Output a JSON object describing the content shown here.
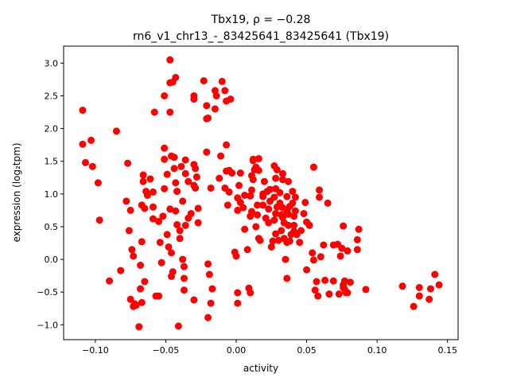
{
  "chart_data": {
    "type": "scatter",
    "title_line1": "Tbx19, ρ = −0.28",
    "title_line2": "rn6_v1_chr13_-_83425641_83425641 (Tbx19)",
    "xlabel": "activity",
    "ylabel": "expression (log₂tpm)",
    "xlim": [
      -0.1225,
      0.1575
    ],
    "ylim": [
      -1.227,
      3.26
    ],
    "xticks": [
      -0.1,
      -0.05,
      0.0,
      0.05,
      0.1,
      0.15
    ],
    "xtick_labels": [
      "−0.10",
      "−0.05",
      "0.00",
      "0.05",
      "0.10",
      "0.15"
    ],
    "yticks": [
      -1.0,
      -0.5,
      0.0,
      0.5,
      1.0,
      1.5,
      2.0,
      2.5,
      3.0
    ],
    "ytick_labels": [
      "−1.0",
      "−0.5",
      "0.0",
      "0.5",
      "1.0",
      "1.5",
      "2.0",
      "2.5",
      "3.0"
    ],
    "grid": false,
    "marker_color": "#ff0000",
    "x": [
      -0.109,
      -0.109,
      -0.107,
      -0.103,
      -0.102,
      -0.098,
      -0.097,
      -0.09,
      -0.085,
      -0.082,
      -0.078,
      -0.077,
      -0.076,
      -0.075,
      -0.074,
      -0.073,
      -0.075,
      -0.073,
      -0.072,
      -0.071,
      -0.069,
      -0.067,
      -0.068,
      -0.068,
      -0.067,
      -0.067,
      -0.066,
      -0.066,
      -0.065,
      -0.065,
      -0.063,
      -0.064,
      -0.061,
      -0.059,
      -0.059,
      -0.059,
      -0.057,
      -0.055,
      -0.058,
      -0.055,
      -0.054,
      -0.053,
      -0.052,
      -0.051,
      -0.051,
      -0.051,
      -0.051,
      -0.049,
      -0.047,
      -0.047,
      -0.047,
      -0.046,
      -0.047,
      -0.049,
      -0.048,
      -0.046,
      -0.045,
      -0.043,
      -0.046,
      -0.045,
      -0.044,
      -0.044,
      -0.043,
      -0.043,
      -0.042,
      -0.042,
      -0.04,
      -0.038,
      -0.038,
      -0.04,
      -0.041,
      -0.039,
      -0.037,
      -0.037,
      -0.037,
      -0.036,
      -0.036,
      -0.036,
      -0.034,
      -0.034,
      -0.032,
      -0.03,
      -0.029,
      -0.029,
      -0.028,
      -0.027,
      -0.027,
      -0.03,
      -0.03,
      -0.03,
      -0.03,
      -0.023,
      -0.021,
      -0.021,
      -0.02,
      -0.018,
      -0.021,
      -0.02,
      -0.019,
      -0.02,
      -0.018,
      -0.017,
      -0.015,
      -0.015,
      -0.014,
      -0.012,
      -0.011,
      -0.01,
      -0.008,
      -0.007,
      -0.005,
      -0.004,
      -0.007,
      -0.007,
      -0.008,
      -0.006,
      -0.005,
      -0.003,
      0.0,
      -0.001,
      0.001,
      0.001,
      0.001,
      0.001,
      0.002,
      0.003,
      0.003,
      0.005,
      0.006,
      0.006,
      0.008,
      0.01,
      0.009,
      0.01,
      0.011,
      0.01,
      0.011,
      0.011,
      0.012,
      0.012,
      0.012,
      0.013,
      0.014,
      0.014,
      0.015,
      0.016,
      0.015,
      0.016,
      0.016,
      0.017,
      0.019,
      0.019,
      0.02,
      0.019,
      0.021,
      0.022,
      0.023,
      0.023,
      0.024,
      0.024,
      0.025,
      0.026,
      0.027,
      0.027,
      0.027,
      0.028,
      0.028,
      0.028,
      0.029,
      0.028,
      0.029,
      0.03,
      0.031,
      0.031,
      0.032,
      0.032,
      0.033,
      0.033,
      0.033,
      0.033,
      0.034,
      0.034,
      0.035,
      0.036,
      0.036,
      0.036,
      0.036,
      0.037,
      0.037,
      0.037,
      0.038,
      0.038,
      0.039,
      0.04,
      0.04,
      0.041,
      0.041,
      0.041,
      0.042,
      0.042,
      0.043,
      0.045,
      0.046,
      0.049,
      0.048,
      0.05,
      0.052,
      0.054,
      0.055,
      0.05,
      0.055,
      0.056,
      0.057,
      0.058,
      0.059,
      0.059,
      0.06,
      0.062,
      0.063,
      0.065,
      0.066,
      0.069,
      0.069,
      0.072,
      0.073,
      0.074,
      0.075,
      0.076,
      0.077,
      0.079,
      0.076,
      0.076,
      0.077,
      0.078,
      0.079,
      0.081,
      0.086,
      0.086,
      0.087,
      0.092,
      0.118,
      0.126,
      0.13,
      0.13,
      0.137,
      0.138,
      0.141,
      0.144
    ],
    "y": [
      2.28,
      1.76,
      1.48,
      1.82,
      1.42,
      1.17,
      0.6,
      -0.33,
      1.96,
      -0.17,
      0.89,
      1.47,
      0.44,
      0.75,
      0.15,
      0.05,
      -0.61,
      -0.72,
      -0.68,
      -0.7,
      -1.03,
      -0.66,
      -0.45,
      -0.09,
      0.83,
      0.27,
      1.29,
      1.19,
      0.78,
      -0.34,
      0.98,
      1.04,
      1.23,
      1.03,
      0.8,
      0.62,
      -0.56,
      -0.56,
      2.25,
      0.58,
      0.26,
      -0.05,
      0.66,
      1.7,
      1.53,
      2.5,
      1.08,
      1.3,
      3.05,
      2.25,
      2.7,
      1.58,
      0.77,
      0.38,
      0.19,
      0.1,
      2.71,
      2.78,
      -0.26,
      -0.19,
      1.56,
      1.39,
      1.17,
      0.74,
      1.04,
      0.53,
      0.44,
      0.89,
      0.0,
      0.32,
      -1.02,
      1.42,
      -0.11,
      -0.29,
      -0.47,
      0.52,
      1.52,
      1.31,
      1.19,
      0.63,
      0.7,
      1.13,
      1.39,
      1.09,
      1.26,
      0.78,
      0.56,
      1.45,
      2.5,
      2.45,
      -0.62,
      2.73,
      2.35,
      2.15,
      2.16,
      1.09,
      1.64,
      -0.07,
      -0.23,
      -0.89,
      -0.67,
      -0.45,
      2.3,
      2.58,
      2.5,
      1.24,
      1.58,
      2.72,
      2.58,
      2.42,
      1.03,
      2.45,
      1.75,
      1.35,
      1.09,
      0.83,
      1.36,
      1.32,
      0.05,
      0.11,
      0.94,
      0.75,
      -0.51,
      -0.67,
      1.13,
      1.32,
      0.87,
      0.79,
      0.98,
      0.46,
      0.15,
      0.97,
      -0.44,
      0.66,
      0.73,
      -0.51,
      1.06,
      1.28,
      1.51,
      1.53,
      1.22,
      1.37,
      0.5,
      1.41,
      0.83,
      1.54,
      0.68,
      0.32,
      1.36,
      0.29,
      1.0,
      0.83,
      1.19,
      0.96,
      0.63,
      1.04,
      0.56,
      0.77,
      0.89,
      1.07,
      0.19,
      0.28,
      0.6,
      0.95,
      1.43,
      1.24,
      1.08,
      0.7,
      1.37,
      0.39,
      0.8,
      0.29,
      1.02,
      0.86,
      0.44,
      0.68,
      1.22,
      0.79,
      0.64,
      1.31,
      0.32,
      0.56,
      0.0,
      -0.29,
      0.26,
      0.74,
      0.96,
      0.52,
      1.19,
      0.69,
      0.28,
      0.81,
      0.38,
      1.04,
      0.86,
      0.66,
      0.52,
      0.43,
      0.95,
      0.74,
      0.38,
      0.26,
      0.44,
      0.87,
      0.7,
      0.57,
      0.52,
      0.1,
      -0.01,
      -0.16,
      1.41,
      -0.47,
      -0.34,
      -0.56,
      1.06,
      0.95,
      0.04,
      0.22,
      -0.32,
      0.86,
      -0.53,
      0.22,
      -0.33,
      0.23,
      -0.53,
      0.05,
      0.17,
      0.51,
      -0.33,
      0.13,
      -0.43,
      -0.39,
      -0.46,
      -0.51,
      -0.51,
      -0.35,
      0.15,
      0.3,
      0.46,
      -0.46,
      -0.41,
      -0.72,
      -0.56,
      -0.43,
      -0.61,
      -0.45,
      -0.23,
      -0.39
    ]
  }
}
